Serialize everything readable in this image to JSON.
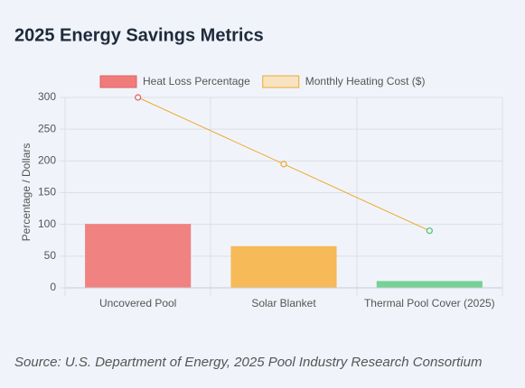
{
  "chart_data": {
    "type": "bar",
    "title": "2025 Energy Savings Metrics",
    "categories": [
      "Uncovered Pool",
      "Solar Blanket",
      "Thermal Pool Cover (2025)"
    ],
    "series": [
      {
        "name": "Heat Loss Percentage",
        "type": "bar",
        "color": "#f07b7b",
        "colors": [
          "#f07b7b",
          "#f5b74f",
          "#6fcf8f"
        ],
        "values": [
          100,
          65,
          10
        ]
      },
      {
        "name": "Monthly Heating Cost ($)",
        "type": "line",
        "color": "#f0a830",
        "colors": [
          "#e85a5a",
          "#f0a830",
          "#4cc070"
        ],
        "values": [
          300,
          195,
          90
        ]
      }
    ],
    "ylabel": "Percentage / Dollars",
    "ylim": [
      0,
      300
    ],
    "yticks": [
      0,
      50,
      100,
      150,
      200,
      250,
      300
    ],
    "grid": true,
    "source": "Source: U.S. Department of Energy, 2025 Pool Industry Research Consortium"
  }
}
